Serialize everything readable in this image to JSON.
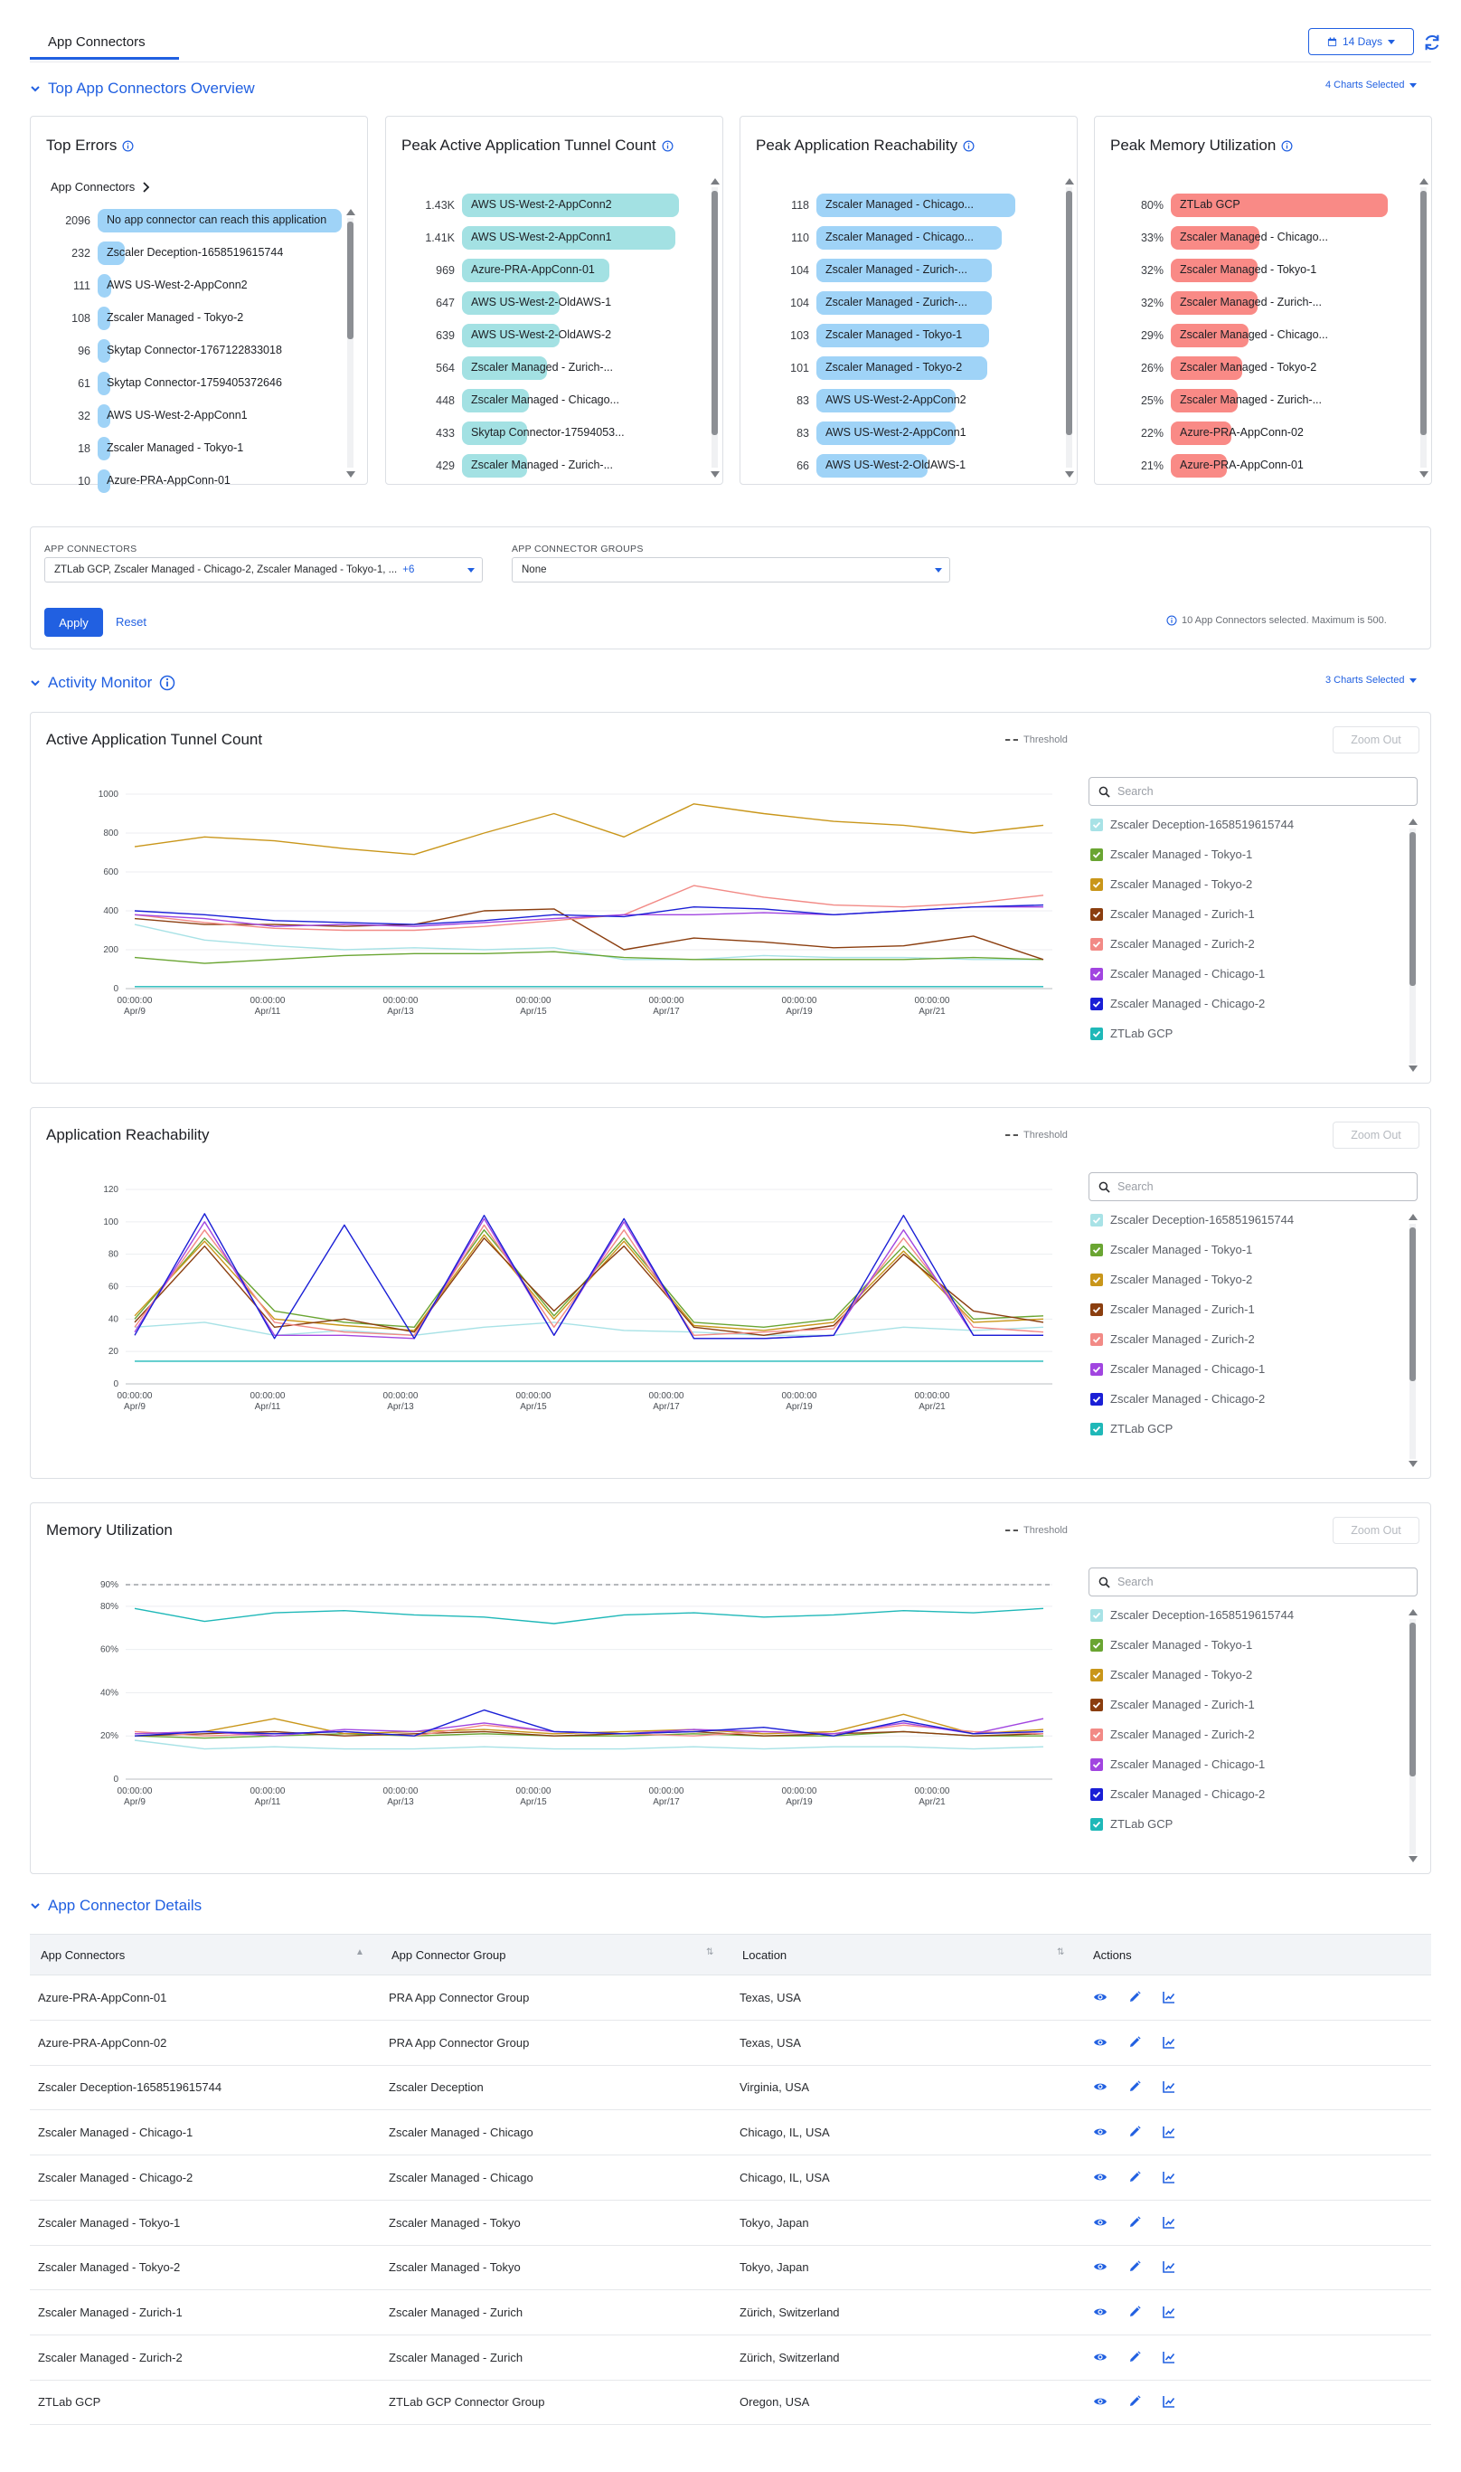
{
  "header": {
    "tab_label": "App Connectors",
    "date_range": "14 Days"
  },
  "overview": {
    "title": "Top App Connectors Overview",
    "charts_selected": "4 Charts Selected"
  },
  "top_errors": {
    "title": "Top Errors",
    "subheading": "App Connectors",
    "color": "#9fd3f7",
    "items": [
      {
        "value": "2096",
        "label": "No app connector can reach this application",
        "frac": 1.0
      },
      {
        "value": "232",
        "label": "Zscaler Deception-1658519615744",
        "frac": 0.11
      },
      {
        "value": "111",
        "label": "AWS US-West-2-AppConn2",
        "frac": 0.055
      },
      {
        "value": "108",
        "label": "Zscaler Managed - Tokyo-2",
        "frac": 0.052
      },
      {
        "value": "96",
        "label": "Skytap Connector-1767122833018",
        "frac": 0.046
      },
      {
        "value": "61",
        "label": "Skytap Connector-1759405372646",
        "frac": 0.03
      },
      {
        "value": "32",
        "label": "AWS US-West-2-AppConn1",
        "frac": 0.016
      },
      {
        "value": "18",
        "label": "Zscaler Managed - Tokyo-1",
        "frac": 0.009
      },
      {
        "value": "10",
        "label": "Azure-PRA-AppConn-01",
        "frac": 0.005
      }
    ]
  },
  "peak_tunnel": {
    "title": "Peak Active Application Tunnel Count",
    "color": "#a3e1e3",
    "items": [
      {
        "value": "1.43K",
        "label": "AWS US-West-2-AppConn2",
        "frac": 1.0
      },
      {
        "value": "1.41K",
        "label": "AWS US-West-2-AppConn1",
        "frac": 0.985
      },
      {
        "value": "969",
        "label": "Azure-PRA-AppConn-01",
        "frac": 0.68
      },
      {
        "value": "647",
        "label": "AWS US-West-2-OldAWS-1",
        "frac": 0.45
      },
      {
        "value": "639",
        "label": "AWS US-West-2-OldAWS-2",
        "frac": 0.45
      },
      {
        "value": "564",
        "label": "Zscaler Managed - Zurich-...",
        "frac": 0.39
      },
      {
        "value": "448",
        "label": "Zscaler Managed - Chicago...",
        "frac": 0.31
      },
      {
        "value": "433",
        "label": "Skytap Connector-17594053...",
        "frac": 0.3
      },
      {
        "value": "429",
        "label": "Zscaler Managed - Zurich-...",
        "frac": 0.3
      }
    ]
  },
  "peak_reach": {
    "title": "Peak Application Reachability",
    "color": "#9fd3f7",
    "items": [
      {
        "value": "118",
        "label": "Zscaler Managed - Chicago...",
        "frac": 1.0
      },
      {
        "value": "110",
        "label": "Zscaler Managed - Chicago...",
        "frac": 0.93
      },
      {
        "value": "104",
        "label": "Zscaler Managed - Zurich-...",
        "frac": 0.88
      },
      {
        "value": "104",
        "label": "Zscaler Managed - Zurich-...",
        "frac": 0.88
      },
      {
        "value": "103",
        "label": "Zscaler Managed - Tokyo-1",
        "frac": 0.87
      },
      {
        "value": "101",
        "label": "Zscaler Managed - Tokyo-2",
        "frac": 0.86
      },
      {
        "value": "83",
        "label": "AWS US-West-2-AppConn2",
        "frac": 0.7
      },
      {
        "value": "83",
        "label": "AWS US-West-2-AppConn1",
        "frac": 0.7
      },
      {
        "value": "66",
        "label": "AWS US-West-2-OldAWS-1",
        "frac": 0.56
      }
    ]
  },
  "peak_memory": {
    "title": "Peak Memory Utilization",
    "color": "#f98a86",
    "items": [
      {
        "value": "80%",
        "label": "ZTLab GCP",
        "frac": 1.0
      },
      {
        "value": "33%",
        "label": "Zscaler Managed - Chicago...",
        "frac": 0.41
      },
      {
        "value": "32%",
        "label": "Zscaler Managed - Tokyo-1",
        "frac": 0.4
      },
      {
        "value": "32%",
        "label": "Zscaler Managed - Zurich-...",
        "frac": 0.4
      },
      {
        "value": "29%",
        "label": "Zscaler Managed - Chicago...",
        "frac": 0.36
      },
      {
        "value": "26%",
        "label": "Zscaler Managed - Tokyo-2",
        "frac": 0.33
      },
      {
        "value": "25%",
        "label": "Zscaler Managed - Zurich-...",
        "frac": 0.31
      },
      {
        "value": "22%",
        "label": "Azure-PRA-AppConn-02",
        "frac": 0.28
      },
      {
        "value": "21%",
        "label": "Azure-PRA-AppConn-01",
        "frac": 0.26
      }
    ]
  },
  "filters": {
    "connectors_label": "APP CONNECTORS",
    "connectors_value": "ZTLab GCP, Zscaler Managed - Chicago-2, Zscaler Managed - Tokyo-1, ...",
    "connectors_more": "+6",
    "groups_label": "APP CONNECTOR GROUPS",
    "groups_value": "None",
    "apply_label": "Apply",
    "reset_label": "Reset",
    "info_text": "10 App Connectors selected. Maximum is 500."
  },
  "activity": {
    "title": "Activity Monitor",
    "charts_selected": "3 Charts Selected",
    "threshold_label": "Threshold",
    "zoom_label": "Zoom Out",
    "search_placeholder": "Search",
    "legend": [
      {
        "name": "Zscaler Deception-1658519615744",
        "color": "#a8e2e6"
      },
      {
        "name": "Zscaler Managed - Tokyo-1",
        "color": "#6aa532"
      },
      {
        "name": "Zscaler Managed - Tokyo-2",
        "color": "#c9961a"
      },
      {
        "name": "Zscaler Managed - Zurich-1",
        "color": "#8b3e0f"
      },
      {
        "name": "Zscaler Managed - Zurich-2",
        "color": "#f28a86"
      },
      {
        "name": "Zscaler Managed - Chicago-1",
        "color": "#a145e0"
      },
      {
        "name": "Zscaler Managed - Chicago-2",
        "color": "#1a1fd6"
      },
      {
        "name": "ZTLab GCP",
        "color": "#1fb8b8"
      }
    ],
    "x_ticks": [
      {
        "time": "00:00:00",
        "date": "Apr/9"
      },
      {
        "time": "00:00:00",
        "date": "Apr/11"
      },
      {
        "time": "00:00:00",
        "date": "Apr/13"
      },
      {
        "time": "00:00:00",
        "date": "Apr/15"
      },
      {
        "time": "00:00:00",
        "date": "Apr/17"
      },
      {
        "time": "00:00:00",
        "date": "Apr/19"
      },
      {
        "time": "00:00:00",
        "date": "Apr/21"
      }
    ]
  },
  "chart_data": [
    {
      "type": "line",
      "title": "Active Application Tunnel Count",
      "ylim": [
        0,
        1000
      ],
      "yticks": [
        "0",
        "200",
        "400",
        "600",
        "800",
        "1000"
      ],
      "x": [
        "Apr/9",
        "Apr/10",
        "Apr/11",
        "Apr/12",
        "Apr/13",
        "Apr/14",
        "Apr/15",
        "Apr/16",
        "Apr/17",
        "Apr/18",
        "Apr/19",
        "Apr/20",
        "Apr/21",
        "Apr/22"
      ],
      "series": [
        {
          "name": "Zscaler Deception-1658519615744",
          "values": [
            330,
            250,
            220,
            200,
            210,
            200,
            210,
            150,
            150,
            170,
            160,
            160,
            150,
            150
          ]
        },
        {
          "name": "Zscaler Managed - Tokyo-1",
          "values": [
            160,
            130,
            150,
            170,
            180,
            180,
            190,
            160,
            150,
            150,
            150,
            150,
            160,
            150
          ]
        },
        {
          "name": "Zscaler Managed - Tokyo-2",
          "values": [
            730,
            780,
            760,
            720,
            690,
            800,
            900,
            780,
            950,
            900,
            860,
            840,
            800,
            840
          ]
        },
        {
          "name": "Zscaler Managed - Zurich-1",
          "values": [
            360,
            330,
            330,
            320,
            330,
            400,
            410,
            200,
            260,
            240,
            210,
            220,
            270,
            150
          ]
        },
        {
          "name": "Zscaler Managed - Zurich-2",
          "values": [
            380,
            340,
            310,
            300,
            300,
            320,
            350,
            380,
            530,
            470,
            430,
            420,
            440,
            480
          ]
        },
        {
          "name": "Zscaler Managed - Chicago-1",
          "values": [
            380,
            360,
            320,
            330,
            320,
            340,
            360,
            380,
            380,
            390,
            380,
            400,
            420,
            420
          ]
        },
        {
          "name": "Zscaler Managed - Chicago-2",
          "values": [
            400,
            380,
            350,
            340,
            330,
            350,
            380,
            370,
            420,
            410,
            380,
            400,
            420,
            430
          ]
        },
        {
          "name": "ZTLab GCP",
          "values": [
            10,
            10,
            10,
            10,
            10,
            10,
            10,
            10,
            10,
            10,
            10,
            10,
            10,
            10
          ]
        }
      ]
    },
    {
      "type": "line",
      "title": "Application Reachability",
      "ylim": [
        0,
        120
      ],
      "yticks": [
        "0",
        "20",
        "40",
        "60",
        "80",
        "100",
        "120"
      ],
      "x": [
        "Apr/9",
        "Apr/10",
        "Apr/11",
        "Apr/12",
        "Apr/13",
        "Apr/14",
        "Apr/15",
        "Apr/16",
        "Apr/17",
        "Apr/18",
        "Apr/19",
        "Apr/20",
        "Apr/21",
        "Apr/22"
      ],
      "series": [
        {
          "name": "Zscaler Deception-1658519615744",
          "values": [
            35,
            38,
            30,
            33,
            30,
            35,
            38,
            33,
            32,
            30,
            30,
            35,
            33,
            35
          ]
        },
        {
          "name": "Zscaler Managed - Tokyo-1",
          "values": [
            40,
            90,
            45,
            38,
            35,
            95,
            42,
            90,
            38,
            35,
            40,
            85,
            40,
            42
          ]
        },
        {
          "name": "Zscaler Managed - Tokyo-2",
          "values": [
            42,
            88,
            40,
            36,
            33,
            92,
            40,
            88,
            36,
            33,
            38,
            82,
            38,
            40
          ]
        },
        {
          "name": "Zscaler Managed - Zurich-1",
          "values": [
            38,
            85,
            35,
            40,
            32,
            90,
            45,
            85,
            35,
            30,
            36,
            80,
            45,
            38
          ]
        },
        {
          "name": "Zscaler Managed - Zurich-2",
          "values": [
            35,
            95,
            38,
            32,
            30,
            98,
            35,
            95,
            30,
            32,
            34,
            90,
            35,
            32
          ]
        },
        {
          "name": "Zscaler Managed - Chicago-1",
          "values": [
            32,
            100,
            30,
            30,
            28,
            102,
            30,
            100,
            28,
            28,
            30,
            95,
            30,
            30
          ]
        },
        {
          "name": "Zscaler Managed - Chicago-2",
          "values": [
            30,
            105,
            28,
            98,
            28,
            104,
            30,
            102,
            28,
            28,
            30,
            104,
            30,
            30
          ]
        },
        {
          "name": "ZTLab GCP",
          "values": [
            14,
            14,
            14,
            14,
            14,
            14,
            14,
            14,
            14,
            14,
            14,
            14,
            14,
            14
          ]
        }
      ]
    },
    {
      "type": "line",
      "title": "Memory Utilization",
      "ylim": [
        0,
        90
      ],
      "yticks": [
        "0",
        "20%",
        "40%",
        "60%",
        "80%",
        "90%"
      ],
      "threshold": 90,
      "x": [
        "Apr/9",
        "Apr/10",
        "Apr/11",
        "Apr/12",
        "Apr/13",
        "Apr/14",
        "Apr/15",
        "Apr/16",
        "Apr/17",
        "Apr/18",
        "Apr/19",
        "Apr/20",
        "Apr/21",
        "Apr/22"
      ],
      "series": [
        {
          "name": "Zscaler Deception-1658519615744",
          "values": [
            18,
            14,
            15,
            14,
            14,
            15,
            14,
            14,
            15,
            14,
            15,
            15,
            14,
            15
          ]
        },
        {
          "name": "Zscaler Managed - Tokyo-1",
          "values": [
            20,
            19,
            20,
            21,
            20,
            21,
            20,
            20,
            21,
            20,
            20,
            22,
            20,
            20
          ]
        },
        {
          "name": "Zscaler Managed - Tokyo-2",
          "values": [
            21,
            22,
            28,
            21,
            22,
            23,
            21,
            22,
            23,
            21,
            22,
            30,
            21,
            23
          ]
        },
        {
          "name": "Zscaler Managed - Zurich-1",
          "values": [
            20,
            21,
            22,
            20,
            21,
            22,
            20,
            21,
            22,
            20,
            21,
            22,
            20,
            21
          ]
        },
        {
          "name": "Zscaler Managed - Zurich-2",
          "values": [
            22,
            20,
            21,
            22,
            20,
            25,
            22,
            21,
            20,
            22,
            21,
            25,
            22,
            21
          ]
        },
        {
          "name": "Zscaler Managed - Chicago-1",
          "values": [
            21,
            22,
            20,
            23,
            22,
            26,
            22,
            21,
            23,
            22,
            21,
            26,
            21,
            28
          ]
        },
        {
          "name": "Zscaler Managed - Chicago-2",
          "values": [
            20,
            22,
            21,
            22,
            20,
            32,
            22,
            21,
            22,
            24,
            20,
            27,
            21,
            22
          ]
        },
        {
          "name": "ZTLab GCP",
          "values": [
            79,
            73,
            77,
            78,
            76,
            75,
            72,
            76,
            77,
            75,
            76,
            78,
            77,
            79
          ]
        }
      ]
    }
  ],
  "details": {
    "title": "App Connector Details",
    "columns": [
      "App Connectors",
      "App Connector Group",
      "Location",
      "Actions"
    ],
    "rows": [
      [
        "Azure-PRA-AppConn-01",
        "PRA App Connector Group",
        "Texas, USA"
      ],
      [
        "Azure-PRA-AppConn-02",
        "PRA App Connector Group",
        "Texas, USA"
      ],
      [
        "Zscaler Deception-1658519615744",
        "Zscaler Deception",
        "Virginia, USA"
      ],
      [
        "Zscaler Managed - Chicago-1",
        "Zscaler Managed - Chicago",
        "Chicago, IL, USA"
      ],
      [
        "Zscaler Managed - Chicago-2",
        "Zscaler Managed - Chicago",
        "Chicago, IL, USA"
      ],
      [
        "Zscaler Managed - Tokyo-1",
        "Zscaler Managed - Tokyo",
        "Tokyo, Japan"
      ],
      [
        "Zscaler Managed - Tokyo-2",
        "Zscaler Managed - Tokyo",
        "Tokyo, Japan"
      ],
      [
        "Zscaler Managed - Zurich-1",
        "Zscaler Managed - Zurich",
        "Zürich, Switzerland"
      ],
      [
        "Zscaler Managed - Zurich-2",
        "Zscaler Managed - Zurich",
        "Zürich, Switzerland"
      ],
      [
        "ZTLab GCP",
        "ZTLab GCP Connector Group",
        "Oregon, USA"
      ]
    ]
  }
}
